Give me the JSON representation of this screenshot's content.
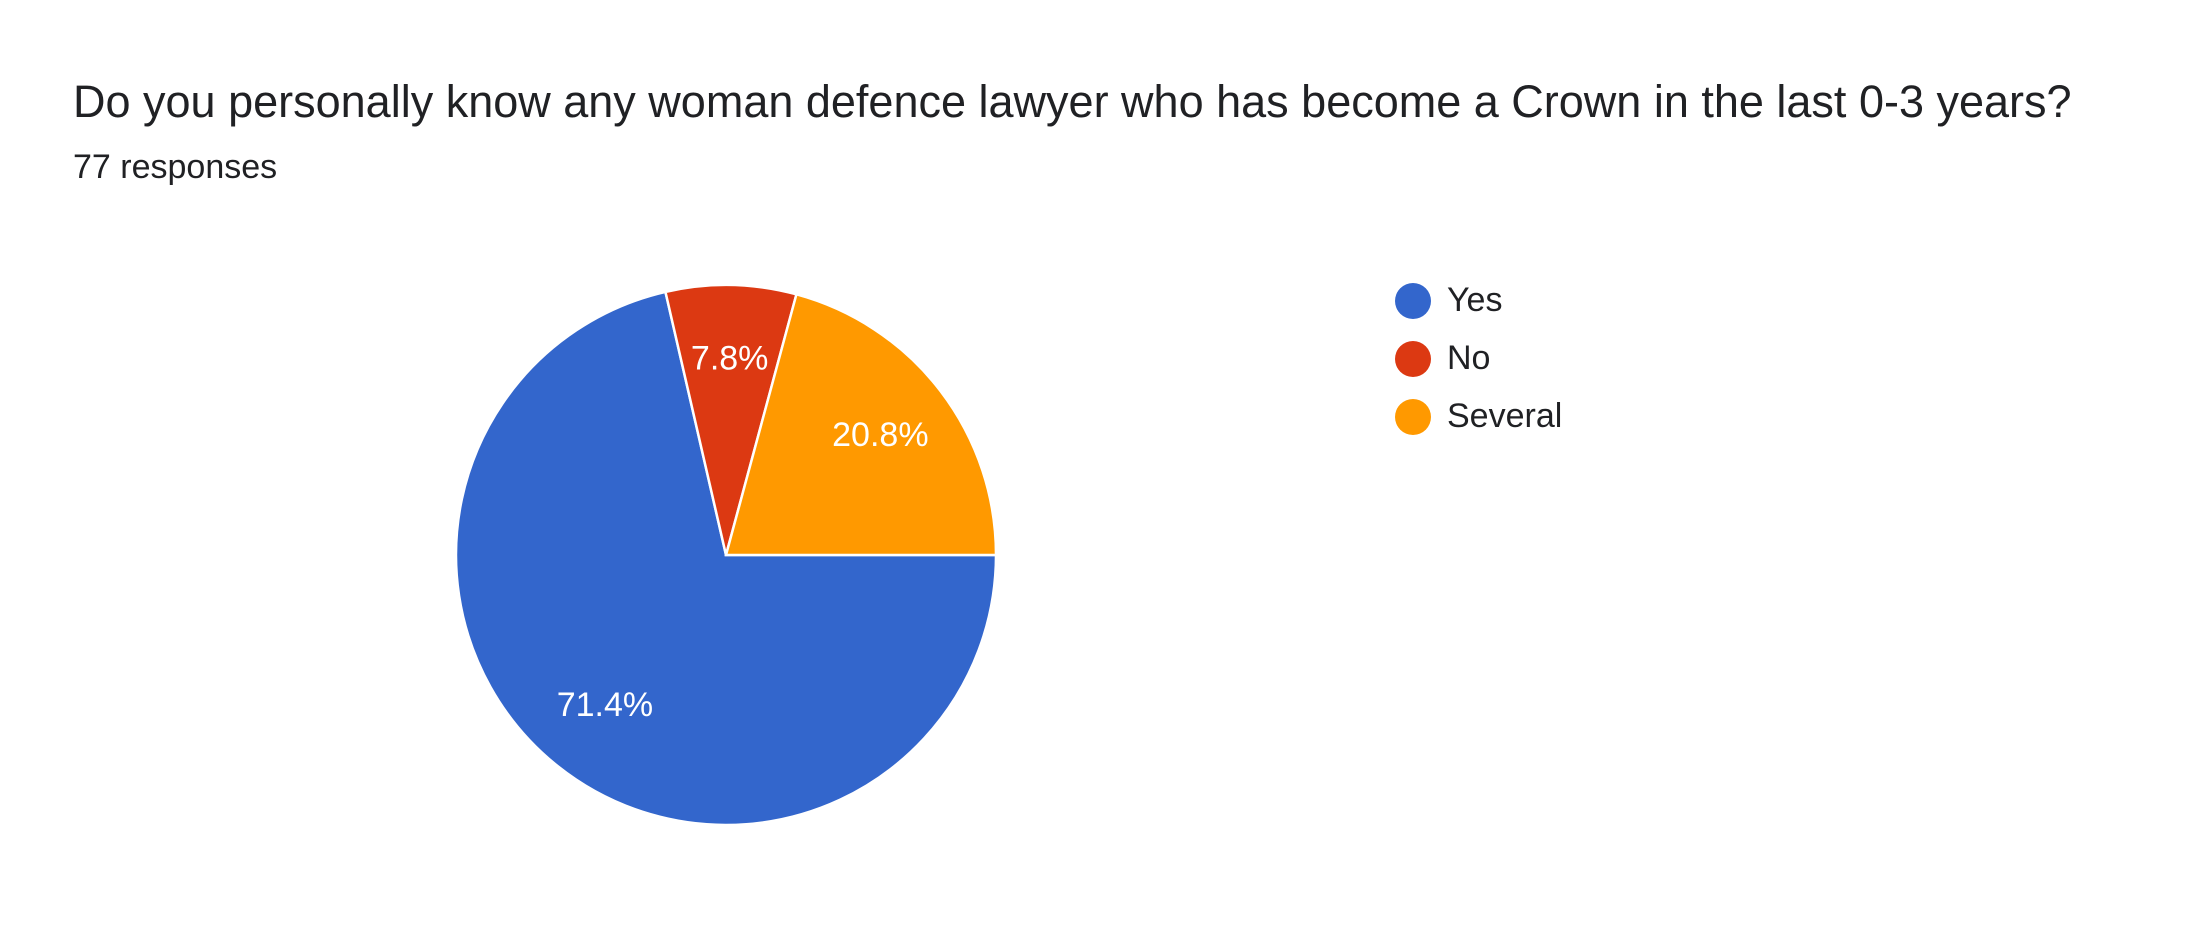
{
  "chart_data": {
    "type": "pie",
    "title": "Do you personally know any woman defence lawyer who has become a Crown in the last 0-3 years?",
    "subtitle": "77 responses",
    "categories": [
      "Yes",
      "No",
      "Several"
    ],
    "values": [
      71.4,
      7.8,
      20.8
    ],
    "value_labels": [
      "71.4%",
      "7.8%",
      "20.8%"
    ],
    "colors": [
      "#3366cc",
      "#dc3912",
      "#ff9900"
    ],
    "legend": "right"
  }
}
